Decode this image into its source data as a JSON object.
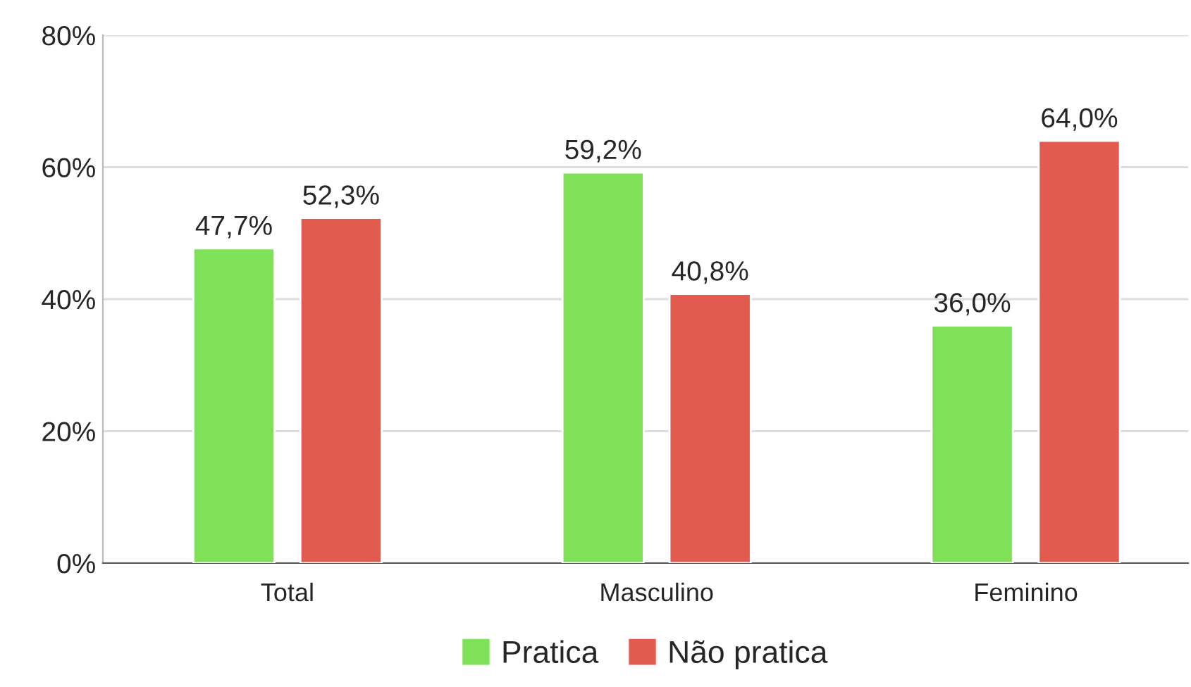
{
  "chart_data": {
    "type": "bar",
    "categories": [
      "Total",
      "Masculino",
      "Feminino"
    ],
    "series": [
      {
        "name": "Pratica",
        "color": "#7ee157",
        "values": [
          47.7,
          59.2,
          36.0
        ],
        "value_labels": [
          "47,7%",
          "59,2%",
          "36,0%"
        ]
      },
      {
        "name": "Não pratica",
        "color": "#e35b4f",
        "values": [
          52.3,
          40.8,
          64.0
        ],
        "value_labels": [
          "52,3%",
          "40,8%",
          "64,0%"
        ]
      }
    ],
    "ylim": [
      0,
      80
    ],
    "yticks": [
      {
        "value": 0,
        "label": "0%"
      },
      {
        "value": 20,
        "label": "20%"
      },
      {
        "value": 40,
        "label": "40%"
      },
      {
        "value": 60,
        "label": "60%"
      },
      {
        "value": 80,
        "label": "80%"
      }
    ],
    "grid": "y",
    "legend": "bottom"
  }
}
